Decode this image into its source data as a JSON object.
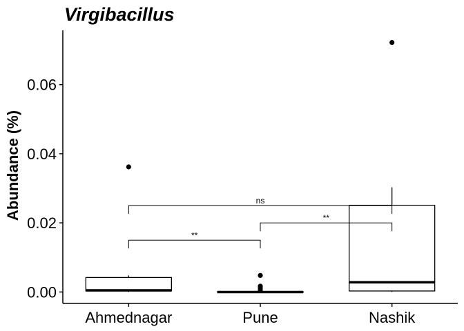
{
  "chart_data": {
    "type": "box",
    "title": "Virgibacillus",
    "xlabel": "",
    "ylabel": "Abundance (%)",
    "categories": [
      "Ahmednagar",
      "Pune",
      "Nashik"
    ],
    "ylim": [
      -0.0033,
      0.0757
    ],
    "yticks": [
      0.0,
      0.02,
      0.04,
      0.06
    ],
    "ytick_labels": [
      "0.00",
      "0.02",
      "0.04",
      "0.06"
    ],
    "grid": false,
    "legend": "none",
    "boxes": [
      {
        "category": "Ahmednagar",
        "min": 0.0,
        "q1": 0.0003,
        "median": 0.0005,
        "q3": 0.0042,
        "max": 0.0048,
        "outliers": [
          0.0362
        ]
      },
      {
        "category": "Pune",
        "min": 0.0,
        "q1": 0.0,
        "median": 0.0,
        "q3": 0.0001,
        "max": 0.0002,
        "outliers": [
          0.0048,
          0.0017,
          0.0012,
          0.0006
        ]
      },
      {
        "category": "Nashik",
        "min": 0.0,
        "q1": 0.0003,
        "median": 0.0028,
        "q3": 0.0251,
        "max": 0.0303,
        "outliers": [
          0.0722
        ]
      }
    ],
    "comparisons": [
      {
        "from": "Ahmednagar",
        "to": "Pune",
        "y": 0.015,
        "label": "**"
      },
      {
        "from": "Pune",
        "to": "Nashik",
        "y": 0.02,
        "label": "**"
      },
      {
        "from": "Ahmednagar",
        "to": "Nashik",
        "y": 0.025,
        "label": "ns"
      }
    ]
  }
}
